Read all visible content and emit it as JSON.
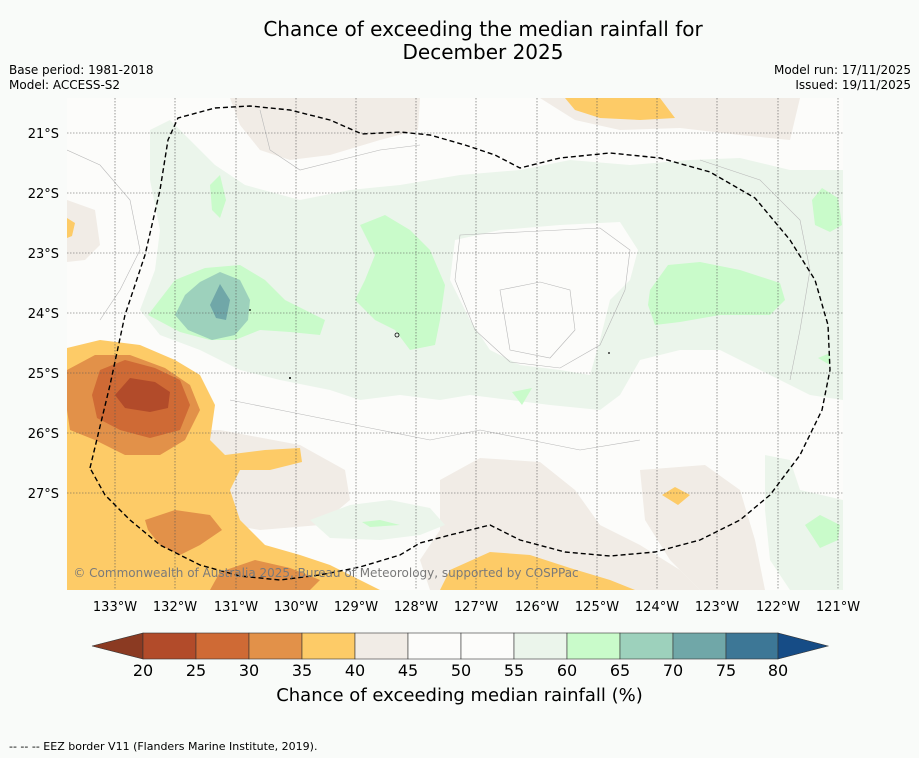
{
  "title_line1": "Chance of exceeding the median rainfall for",
  "title_line2": "December 2025",
  "meta_left": {
    "base_period": "Base period: 1981-2018",
    "model": "Model: ACCESS-S2"
  },
  "meta_right": {
    "model_run": "Model run: 17/11/2025",
    "issued": "Issued: 19/11/2025"
  },
  "map": {
    "lat_labels": [
      "21°S",
      "22°S",
      "23°S",
      "24°S",
      "25°S",
      "26°S",
      "27°S"
    ],
    "lon_labels": [
      "133°W",
      "132°W",
      "131°W",
      "130°W",
      "129°W",
      "128°W",
      "127°W",
      "126°W",
      "125°W",
      "124°W",
      "123°W",
      "122°W",
      "121°W"
    ],
    "copyright": "© Commonwealth of Australia 2025, Bureau of Meteorology, supported by COSPPac"
  },
  "colorbar": {
    "ticks": [
      "20",
      "25",
      "30",
      "35",
      "40",
      "45",
      "50",
      "55",
      "60",
      "65",
      "70",
      "75",
      "80"
    ],
    "colors": {
      "lt20": "#8b3a22",
      "b20_25": "#b24b2a",
      "b25_30": "#cf6a35",
      "b30_35": "#e29149",
      "b35_40": "#fdcb67",
      "b40_45": "#f1ece6",
      "b45_50": "#fcfcfa",
      "b50_55": "#fcfcfa",
      "b55_60": "#ebf5eb",
      "b60_65": "#c9fbca",
      "b65_70": "#9dd1bc",
      "b70_75": "#70a7a8",
      "b75_80": "#3d7796",
      "gt80": "#164c86"
    },
    "label": "Chance of exceeding median rainfall (%)"
  },
  "footnote": "-- -- -- EEZ border V11 (Flanders Marine Institute, 2019)."
}
